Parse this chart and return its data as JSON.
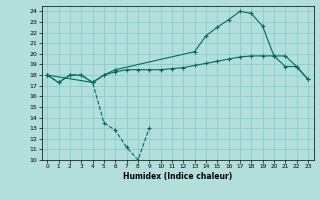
{
  "xlabel": "Humidex (Indice chaleur)",
  "xlim": [
    -0.5,
    23.5
  ],
  "ylim": [
    10,
    24.5
  ],
  "yticks": [
    10,
    11,
    12,
    13,
    14,
    15,
    16,
    17,
    18,
    19,
    20,
    21,
    22,
    23,
    24
  ],
  "xticks": [
    0,
    1,
    2,
    3,
    4,
    5,
    6,
    7,
    8,
    9,
    10,
    11,
    12,
    13,
    14,
    15,
    16,
    17,
    18,
    19,
    20,
    21,
    22,
    23
  ],
  "bg_color": "#b2dfdb",
  "grid_color": "#80cbc4",
  "line_color": "#00695c",
  "line1_x": [
    0,
    1,
    2,
    3,
    4,
    5,
    6,
    7,
    8,
    9,
    10,
    11,
    12,
    13,
    14,
    15,
    16,
    17,
    18,
    19,
    20,
    21,
    22,
    23
  ],
  "line1_y": [
    18,
    17.3,
    18,
    18,
    17.3,
    18,
    18.3,
    18.5,
    18.5,
    18.5,
    18.5,
    18.6,
    18.7,
    18.9,
    19.1,
    19.3,
    19.5,
    19.7,
    19.8,
    19.8,
    19.8,
    18.8,
    18.8,
    17.6
  ],
  "line2_x": [
    0,
    1,
    2,
    3,
    4,
    5,
    6,
    7,
    8,
    9
  ],
  "line2_y": [
    18,
    17.3,
    18,
    18,
    17.3,
    13.5,
    12.8,
    11.2,
    10.0,
    13.0
  ],
  "line3_x": [
    0,
    4,
    5,
    6,
    13,
    14,
    15,
    16,
    17,
    18,
    19,
    20,
    21,
    22,
    23
  ],
  "line3_y": [
    18,
    17.3,
    18.0,
    18.5,
    20.2,
    21.7,
    22.5,
    23.2,
    24.0,
    23.8,
    22.6,
    19.8,
    19.8,
    18.8,
    17.6
  ]
}
